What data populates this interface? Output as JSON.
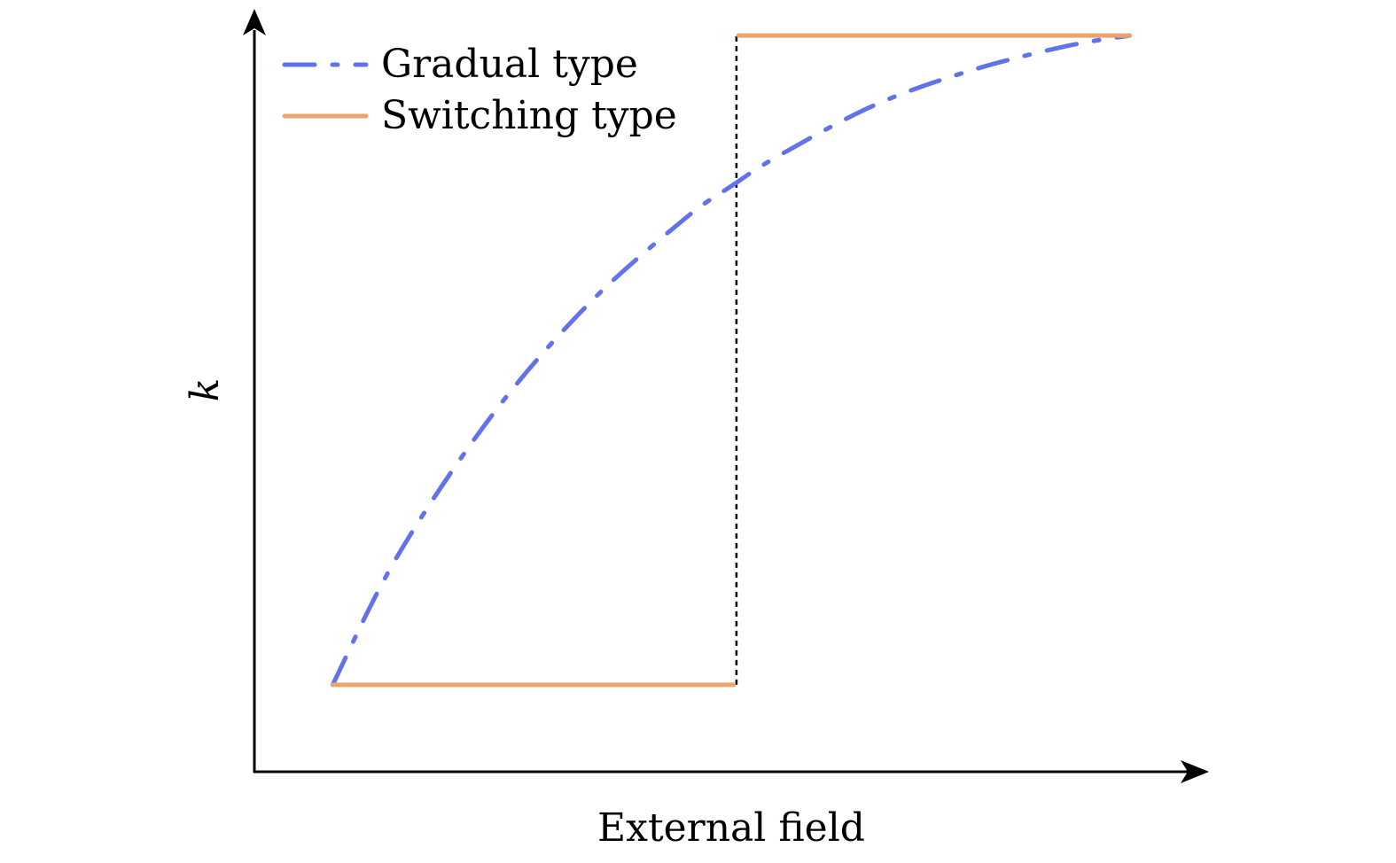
{
  "chart_data": {
    "type": "line",
    "title": "",
    "xlabel": "External field",
    "ylabel": "k",
    "xlim": [
      0,
      1
    ],
    "ylim": [
      0,
      1
    ],
    "grid": false,
    "ticks": false,
    "legend_position": "top-left",
    "colors": {
      "gradual": "#6272ea",
      "switching": "#eba46b",
      "threshold": "#000000",
      "axis": "#000000"
    },
    "series": [
      {
        "name": "Gradual type",
        "style": "dash-dot",
        "color": "#6272ea",
        "x": [
          0.082,
          0.15,
          0.25,
          0.35,
          0.45,
          0.5,
          0.55,
          0.65,
          0.75,
          0.85,
          0.917
        ],
        "y": [
          0.114,
          0.283,
          0.469,
          0.613,
          0.724,
          0.768,
          0.808,
          0.874,
          0.919,
          0.951,
          0.965
        ]
      },
      {
        "name": "Switching type",
        "style": "solid",
        "color": "#eba46b",
        "segments": [
          {
            "x": [
              0.082,
              0.502
            ],
            "y": [
              0.114,
              0.114
            ]
          },
          {
            "x": [
              0.507,
              0.917
            ],
            "y": [
              0.965,
              0.965
            ]
          }
        ]
      }
    ],
    "threshold_line": {
      "style": "dotted",
      "x": 0.505,
      "y_range": [
        0.114,
        0.965
      ]
    }
  }
}
